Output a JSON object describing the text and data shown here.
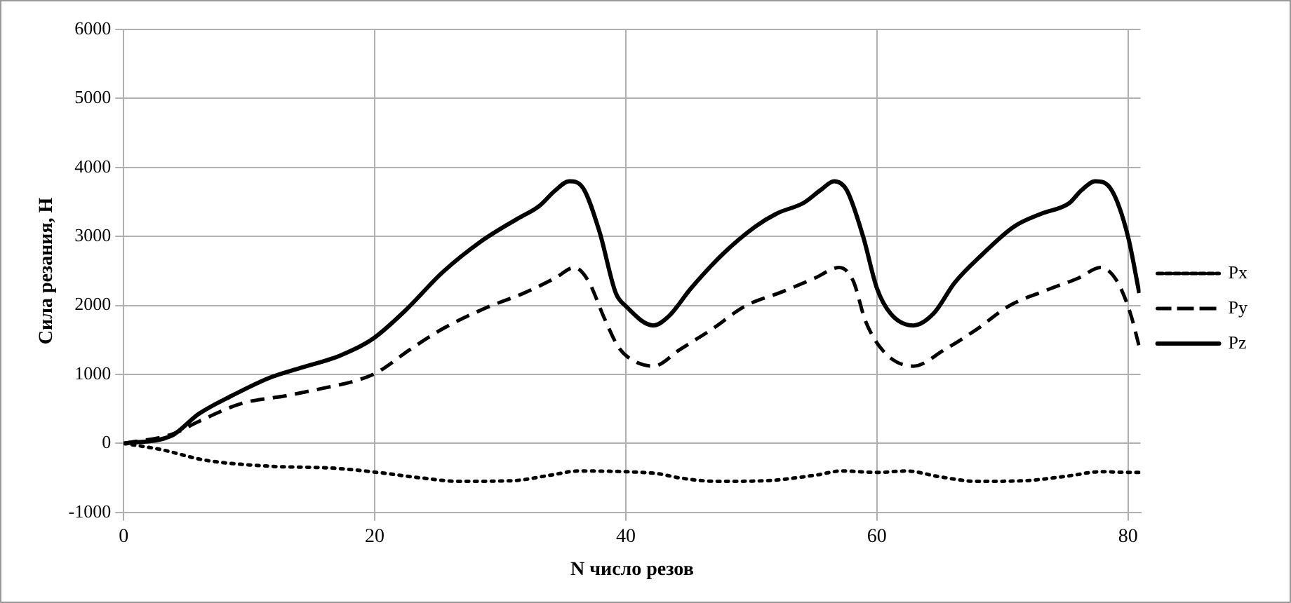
{
  "chart_data": {
    "type": "line",
    "xlabel": "N число резов",
    "ylabel": "Сила резания, Н",
    "xlim": [
      0,
      81
    ],
    "xticks": [
      0,
      20,
      40,
      60,
      80
    ],
    "ylim": [
      -1000,
      6000
    ],
    "yticks": [
      -1000,
      0,
      1000,
      2000,
      3000,
      4000,
      5000,
      6000
    ],
    "grid": true,
    "legend": "right",
    "marker": "none",
    "series": [
      {
        "name": "Px",
        "color": "#000000",
        "line_style": "dotted",
        "x": [
          0,
          3,
          6.4,
          11.6,
          16.8,
          20.2,
          23.7,
          26.7,
          31,
          34,
          36.2,
          40,
          42.6,
          44.3,
          47.3,
          51.2,
          55.1,
          57.2,
          60,
          62.4,
          64.9,
          68,
          71.8,
          75.3,
          77.8,
          80.2,
          81
        ],
        "values": [
          0,
          -90,
          -240,
          -330,
          -360,
          -420,
          -500,
          -550,
          -540,
          -460,
          -400,
          -410,
          -440,
          -500,
          -550,
          -540,
          -460,
          -400,
          -420,
          -400,
          -480,
          -550,
          -540,
          -470,
          -410,
          -420,
          -420
        ]
      },
      {
        "name": "Py",
        "color": "#000000",
        "line_style": "dashed",
        "x": [
          0,
          3.8,
          6,
          9.4,
          12.9,
          15.9,
          18.5,
          20.2,
          22.8,
          25.4,
          28.8,
          31.9,
          34.4,
          35.9,
          37,
          38.3,
          39.4,
          40.5,
          42.2,
          44.3,
          46.9,
          49.5,
          52.5,
          55.1,
          57,
          58.1,
          59.1,
          60.6,
          62.9,
          65.4,
          68,
          70.5,
          73.5,
          76.1,
          77.8,
          79.1,
          80.2,
          80.9
        ],
        "values": [
          0,
          130,
          320,
          580,
          690,
          800,
          910,
          1030,
          1360,
          1660,
          1960,
          2180,
          2400,
          2550,
          2360,
          1810,
          1400,
          1210,
          1120,
          1360,
          1660,
          1990,
          2200,
          2400,
          2550,
          2360,
          1770,
          1320,
          1120,
          1360,
          1660,
          1990,
          2220,
          2400,
          2550,
          2360,
          1880,
          1400
        ]
      },
      {
        "name": "Pz",
        "color": "#000000",
        "line_style": "solid",
        "x": [
          0,
          3.8,
          6,
          8.6,
          11.6,
          14.2,
          17.2,
          19.8,
          22.4,
          25.4,
          28.4,
          31.4,
          33.1,
          34.4,
          35.5,
          36.6,
          37.9,
          39.2,
          40,
          42.2,
          43.4,
          45.2,
          47.7,
          50.3,
          52,
          54.2,
          55.5,
          56.6,
          57.6,
          58.9,
          60,
          61.1,
          62.9,
          64.5,
          66.2,
          68.4,
          70.9,
          73.1,
          75.3,
          76.3,
          77.4,
          78.7,
          80,
          80.9
        ],
        "values": [
          0,
          110,
          430,
          690,
          950,
          1100,
          1270,
          1510,
          1920,
          2480,
          2920,
          3260,
          3440,
          3670,
          3800,
          3700,
          3070,
          2180,
          1990,
          1710,
          1840,
          2250,
          2740,
          3140,
          3330,
          3490,
          3670,
          3800,
          3670,
          3000,
          2250,
          1880,
          1710,
          1880,
          2330,
          2740,
          3140,
          3330,
          3480,
          3670,
          3800,
          3670,
          3000,
          2180
        ]
      }
    ]
  }
}
